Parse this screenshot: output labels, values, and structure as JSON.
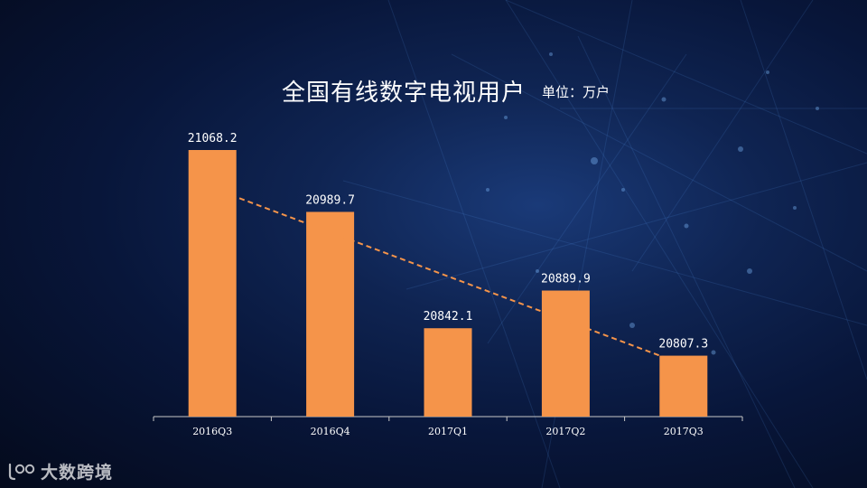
{
  "chart_data": {
    "type": "bar",
    "title": "全国有线数字电视用户",
    "unit": "单位：万户",
    "categories": [
      "2016Q3",
      "2016Q4",
      "2017Q1",
      "2017Q2",
      "2017Q3"
    ],
    "values": [
      21068.2,
      20989.7,
      20842.1,
      20889.9,
      20807.3
    ],
    "value_labels": [
      "21068.2",
      "20989.7",
      "20842.1",
      "20889.9",
      "20807.3"
    ],
    "trendline": true,
    "bar_color": "#f5944a",
    "trend_color": "#f5944a",
    "axis_color": "#c8c8c8"
  },
  "watermark": {
    "text": "大数跨境",
    "icon": "logo-icon"
  }
}
